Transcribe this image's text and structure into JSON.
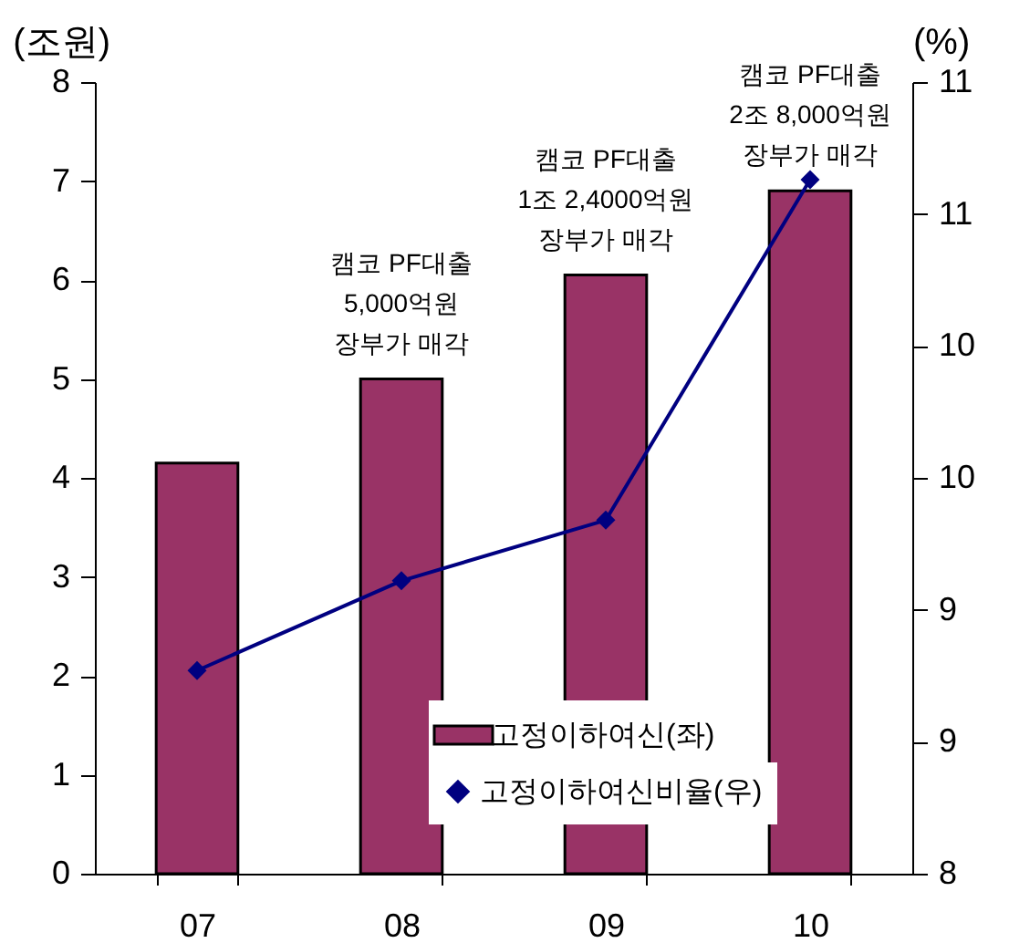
{
  "chart_data": {
    "type": "bar",
    "categories": [
      "07",
      "08",
      "09",
      "10"
    ],
    "ylabel": "(조원)",
    "y2label": "(%)",
    "ylim": [
      0,
      8
    ],
    "yticks": [
      0,
      1,
      2,
      3,
      4,
      5,
      6,
      7,
      8
    ],
    "y2lim": [
      8,
      11
    ],
    "y2ticks": [
      8,
      {
        "value": 8.5,
        "label": "9"
      },
      9,
      {
        "value": 9.5,
        "label": "10"
      },
      10,
      {
        "value": 10.5,
        "label": "11"
      },
      11
    ],
    "series": [
      {
        "name": "고정이하여신(좌)",
        "color": "#993366",
        "values": [
          4.15,
          5.0,
          6.05,
          6.9
        ]
      },
      {
        "name": "고정이하여신비율(우)",
        "type": "line",
        "axis": "y2",
        "color": "#000080",
        "marker": "diamond",
        "values": [
          8.77,
          9.11,
          9.34,
          10.63
        ]
      }
    ],
    "annotations": [
      {
        "text": "캠코 PF대출\n5,000억원\n장부가 매각",
        "x": "08",
        "y": 5.0
      },
      {
        "text": "캠코 PF대출\n1조 2,4000억원\n장부가 매각",
        "x": "09",
        "y": 6.05
      },
      {
        "text": "캠코 PF대출\n2조 8,000억원\n장부가 매각",
        "x": "10",
        "y": 6.9
      }
    ],
    "legend": "bottom right",
    "grid": false
  }
}
